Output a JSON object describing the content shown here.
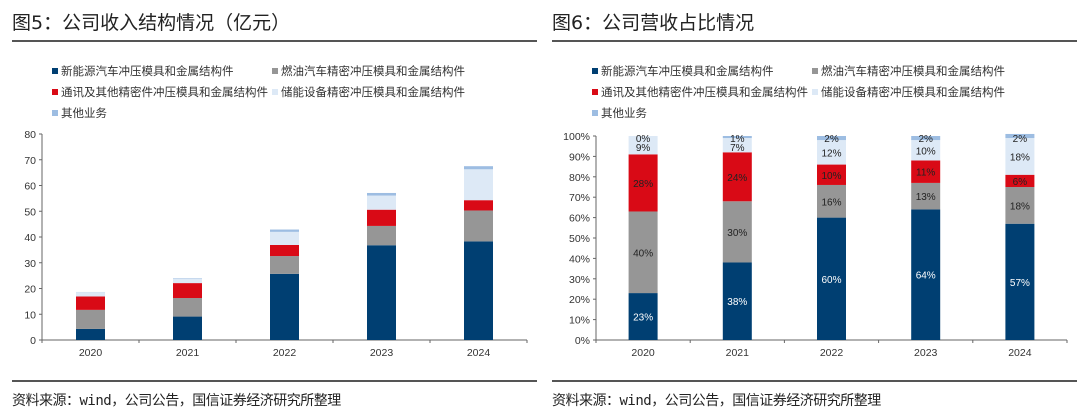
{
  "colors": {
    "nev": "#003f72",
    "fuel": "#969696",
    "telecom": "#d90a16",
    "storage": "#dde9f6",
    "other": "#9dbde2"
  },
  "legend": [
    {
      "key": "nev",
      "label": "新能源汽车冲压模具和金属结构件"
    },
    {
      "key": "fuel",
      "label": "燃油汽车精密冲压模具和金属结构件"
    },
    {
      "key": "telecom",
      "label": "通讯及其他精密件冲压模具和金属结构件"
    },
    {
      "key": "storage",
      "label": "储能设备精密冲压模具和金属结构件"
    },
    {
      "key": "other",
      "label": "其他业务"
    }
  ],
  "chart_data": [
    {
      "type": "bar",
      "stacked": true,
      "title": "图5：公司收入结构情况（亿元）",
      "xlabel": "",
      "ylabel": "",
      "categories": [
        "2020",
        "2021",
        "2022",
        "2023",
        "2024"
      ],
      "ylim": [
        0,
        80
      ],
      "yticks": [
        0,
        10,
        20,
        30,
        40,
        50,
        60,
        70,
        80
      ],
      "ytick_labels": [
        "0",
        "10",
        "20",
        "30",
        "40",
        "50",
        "60",
        "70",
        "80"
      ],
      "grid": false,
      "legend_position": "top",
      "series": [
        {
          "key": "nev",
          "name": "新能源汽车冲压模具和金属结构件",
          "values": [
            4.3,
            9.1,
            25.7,
            36.8,
            38.3
          ]
        },
        {
          "key": "fuel",
          "name": "燃油汽车精密冲压模具和金属结构件",
          "values": [
            7.4,
            7.2,
            6.9,
            7.5,
            12.0
          ]
        },
        {
          "key": "telecom",
          "name": "通讯及其他精密件冲压模具和金属结构件",
          "values": [
            5.2,
            5.8,
            4.3,
            6.3,
            4.0
          ]
        },
        {
          "key": "storage",
          "name": "储能设备精密冲压模具和金属结构件",
          "values": [
            1.7,
            1.7,
            5.1,
            5.5,
            12.0
          ]
        },
        {
          "key": "other",
          "name": "其他业务",
          "values": [
            0.05,
            0.2,
            0.9,
            1.0,
            1.2
          ]
        }
      ],
      "source": "资料来源：wind，公司公告，国信证券经济研究所整理"
    },
    {
      "type": "bar",
      "stacked": true,
      "percent": true,
      "title": "图6：公司营收占比情况",
      "xlabel": "",
      "ylabel": "",
      "categories": [
        "2020",
        "2021",
        "2022",
        "2023",
        "2024"
      ],
      "ylim": [
        0,
        100
      ],
      "yticks": [
        0,
        10,
        20,
        30,
        40,
        50,
        60,
        70,
        80,
        90,
        100
      ],
      "ytick_labels": [
        "0%",
        "10%",
        "20%",
        "30%",
        "40%",
        "50%",
        "60%",
        "70%",
        "80%",
        "90%",
        "100%"
      ],
      "grid": false,
      "legend_position": "top",
      "series": [
        {
          "key": "nev",
          "name": "新能源汽车冲压模具和金属结构件",
          "values": [
            23,
            38,
            60,
            64,
            57
          ],
          "labels": [
            "23%",
            "38%",
            "60%",
            "64%",
            "57%"
          ]
        },
        {
          "key": "fuel",
          "name": "燃油汽车精密冲压模具和金属结构件",
          "values": [
            40,
            30,
            16,
            13,
            18
          ],
          "labels": [
            "40%",
            "30%",
            "16%",
            "13%",
            "18%"
          ]
        },
        {
          "key": "telecom",
          "name": "通讯及其他精密件冲压模具和金属结构件",
          "values": [
            28,
            24,
            10,
            11,
            6
          ],
          "labels": [
            "28%",
            "24%",
            "10%",
            "11%",
            "6%"
          ]
        },
        {
          "key": "storage",
          "name": "储能设备精密冲压模具和金属结构件",
          "values": [
            9,
            7,
            12,
            10,
            18
          ],
          "labels": [
            "9%",
            "7%",
            "12%",
            "10%",
            "18%"
          ]
        },
        {
          "key": "other",
          "name": "其他业务",
          "values": [
            0,
            1,
            2,
            2,
            2
          ],
          "labels": [
            "0%",
            "1%",
            "2%",
            "2%",
            "2%"
          ]
        }
      ],
      "source": "资料来源：wind，公司公告，国信证券经济研究所整理"
    }
  ]
}
